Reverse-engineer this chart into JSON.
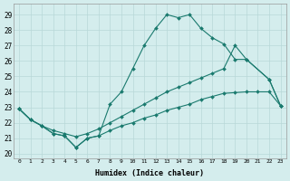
{
  "xlabel": "Humidex (Indice chaleur)",
  "background_color": "#d4eded",
  "grid_color": "#b8d8d8",
  "line_color": "#1a7a6e",
  "xlim": [
    -0.5,
    23.5
  ],
  "ylim": [
    19.7,
    29.7
  ],
  "xticks": [
    0,
    1,
    2,
    3,
    4,
    5,
    6,
    7,
    8,
    9,
    10,
    11,
    12,
    13,
    14,
    15,
    16,
    17,
    18,
    19,
    20,
    21,
    22,
    23
  ],
  "yticks": [
    20,
    21,
    22,
    23,
    24,
    25,
    26,
    27,
    28,
    29
  ],
  "line1_x": [
    0,
    1,
    2,
    3,
    4,
    5,
    6,
    7,
    8,
    9,
    10,
    11,
    12,
    13,
    14,
    15,
    16,
    17,
    18,
    19,
    20,
    22,
    23
  ],
  "line1_y": [
    22.9,
    22.2,
    21.8,
    21.3,
    21.15,
    20.4,
    21.0,
    21.15,
    23.2,
    24.0,
    25.5,
    27.0,
    28.1,
    29.0,
    28.8,
    29.0,
    28.1,
    27.5,
    27.1,
    26.1,
    26.1,
    24.8,
    23.1
  ],
  "line2_x": [
    0,
    1,
    2,
    3,
    4,
    5,
    6,
    7,
    8,
    9,
    10,
    11,
    12,
    13,
    14,
    15,
    16,
    17,
    18,
    19,
    20,
    22,
    23
  ],
  "line2_y": [
    22.9,
    22.2,
    21.8,
    21.5,
    21.3,
    21.1,
    21.3,
    21.6,
    22.0,
    22.4,
    22.8,
    23.2,
    23.6,
    24.0,
    24.3,
    24.6,
    24.9,
    25.2,
    25.5,
    27.0,
    26.1,
    24.8,
    23.1
  ],
  "line3_x": [
    0,
    1,
    2,
    3,
    4,
    5,
    6,
    7,
    8,
    9,
    10,
    11,
    12,
    13,
    14,
    15,
    16,
    17,
    18,
    19,
    20,
    21,
    22,
    23
  ],
  "line3_y": [
    22.9,
    22.2,
    21.8,
    21.3,
    21.15,
    20.4,
    21.0,
    21.15,
    21.5,
    21.8,
    22.0,
    22.3,
    22.5,
    22.8,
    23.0,
    23.2,
    23.5,
    23.7,
    23.9,
    23.95,
    24.0,
    24.0,
    24.0,
    23.1
  ]
}
